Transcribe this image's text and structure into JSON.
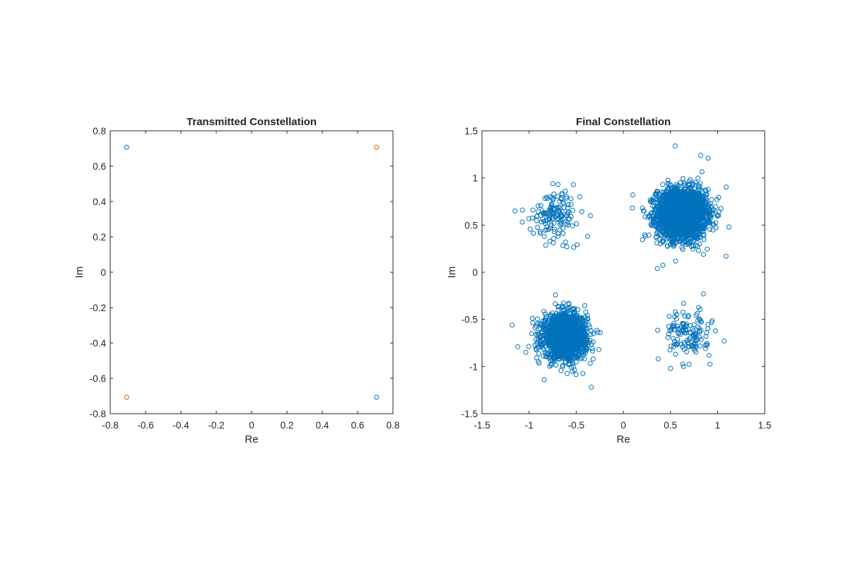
{
  "chart_data": [
    {
      "type": "scatter",
      "title": "Transmitted Constellation",
      "xlabel": "Re",
      "ylabel": "Im",
      "xlim": [
        -0.8,
        0.8
      ],
      "ylim": [
        -0.8,
        0.8
      ],
      "xticks": [
        -0.8,
        -0.6,
        -0.4,
        -0.2,
        0,
        0.2,
        0.4,
        0.6,
        0.8
      ],
      "yticks": [
        -0.8,
        -0.6,
        -0.4,
        -0.2,
        0,
        0.2,
        0.4,
        0.6,
        0.8
      ],
      "xtick_labels": [
        "-0.8",
        "-0.6",
        "-0.4",
        "-0.2",
        "0",
        "0.2",
        "0.4",
        "0.6",
        "0.8"
      ],
      "ytick_labels": [
        "-0.8",
        "-0.6",
        "-0.4",
        "-0.2",
        "0",
        "0.2",
        "0.4",
        "0.6",
        "0.8"
      ],
      "grid": false,
      "marker": "circle",
      "series": [
        {
          "color": "#0072BD",
          "points": [
            [
              -0.7071,
              0.7071
            ],
            [
              0.7071,
              -0.7071
            ]
          ]
        },
        {
          "color": "#D95319",
          "points": [
            [
              0.7071,
              0.7071
            ],
            [
              -0.7071,
              -0.7071
            ]
          ]
        }
      ]
    },
    {
      "type": "scatter",
      "title": "Final Constellation",
      "xlabel": "Re",
      "ylabel": "Im",
      "xlim": [
        -1.5,
        1.5
      ],
      "ylim": [
        -1.5,
        1.5
      ],
      "xticks": [
        -1.5,
        -1,
        -0.5,
        0,
        0.5,
        1,
        1.5
      ],
      "yticks": [
        -1.5,
        -1,
        -0.5,
        0,
        0.5,
        1,
        1.5
      ],
      "xtick_labels": [
        "-1.5",
        "-1",
        "-0.5",
        "0",
        "0.5",
        "1",
        "1.5"
      ],
      "ytick_labels": [
        "-1.5",
        "-1",
        "-0.5",
        "0",
        "0.5",
        "1",
        "1.5"
      ],
      "grid": false,
      "marker": "circle",
      "series": [
        {
          "color": "#0072BD",
          "clusters": [
            {
              "center": [
                0.62,
                0.62
              ],
              "spread": 0.13,
              "count": 2600
            },
            {
              "center": [
                -0.62,
                -0.68
              ],
              "spread": 0.115,
              "count": 1700
            },
            {
              "center": [
                -0.72,
                0.62
              ],
              "spread": 0.12,
              "count": 140
            },
            {
              "center": [
                0.68,
                -0.65
              ],
              "spread": 0.12,
              "count": 130
            }
          ],
          "points": [
            [
              0.55,
              1.34
            ],
            [
              0.82,
              1.24
            ],
            [
              0.9,
              1.21
            ],
            [
              0.36,
              0.04
            ],
            [
              0.85,
              0.19
            ],
            [
              1.09,
              0.17
            ],
            [
              0.1,
              0.82
            ],
            [
              1.12,
              0.48
            ],
            [
              0.5,
              -1.02
            ],
            [
              -0.75,
              0.94
            ],
            [
              -0.96,
              0.66
            ],
            [
              -1.15,
              0.65
            ],
            [
              -0.53,
              0.93
            ],
            [
              -0.78,
              0.33
            ],
            [
              -0.35,
              0.6
            ],
            [
              -0.38,
              0.38
            ],
            [
              -0.6,
              0.27
            ],
            [
              -0.72,
              -0.24
            ],
            [
              -0.58,
              -0.33
            ],
            [
              -0.26,
              -0.82
            ],
            [
              -0.34,
              -1.22
            ],
            [
              -1.12,
              -0.79
            ],
            [
              -1.18,
              -0.56
            ],
            [
              -0.84,
              -1.14
            ],
            [
              0.85,
              -0.23
            ],
            [
              0.37,
              -0.92
            ],
            [
              0.64,
              -1.0
            ],
            [
              1.07,
              -0.73
            ],
            [
              0.64,
              -0.33
            ]
          ]
        }
      ]
    }
  ]
}
